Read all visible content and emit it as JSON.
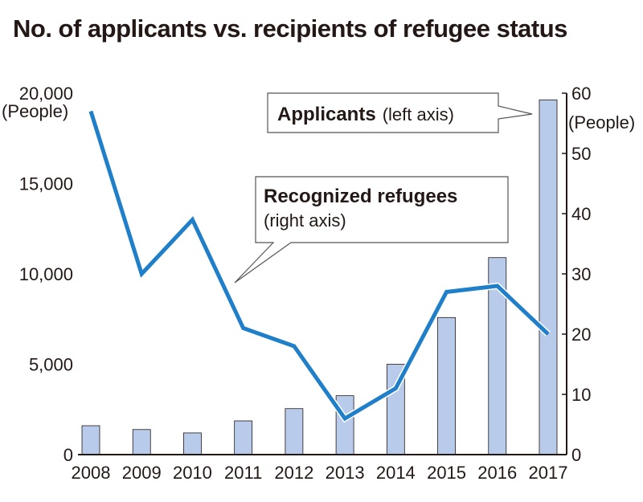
{
  "title": "No. of applicants vs. recipients of refugee status",
  "chart_data": {
    "type": "bar+line",
    "title": "No. of applicants vs. recipients of refugee status",
    "categories": [
      "2008",
      "2009",
      "2010",
      "2011",
      "2012",
      "2013",
      "2014",
      "2015",
      "2016",
      "2017"
    ],
    "series": [
      {
        "name": "Applicants",
        "axis": "left",
        "type": "bar",
        "color": "#b8cbea",
        "values": [
          1599,
          1388,
          1202,
          1867,
          2545,
          3260,
          5000,
          7586,
          10901,
          19629
        ]
      },
      {
        "name": "Recognized refugees",
        "axis": "right",
        "type": "line",
        "color": "#1f7fc8",
        "values": [
          57,
          30,
          39,
          21,
          18,
          6,
          11,
          27,
          28,
          20
        ]
      }
    ],
    "left_axis": {
      "unit": "(People)",
      "ylim": [
        0,
        20000
      ],
      "ticks": [
        "0",
        "5,000",
        "10,000",
        "15,000",
        "20,000"
      ]
    },
    "right_axis": {
      "unit": "(People)",
      "ylim": [
        0,
        60
      ],
      "ticks": [
        "0",
        "10",
        "20",
        "30",
        "40",
        "50",
        "60"
      ]
    },
    "annotations": {
      "applicants_bold": "Applicants",
      "applicants_note": "(left axis)",
      "refugees_bold": "Recognized refugees",
      "refugees_note": "(right axis)"
    },
    "grid": false,
    "legend": "none"
  }
}
